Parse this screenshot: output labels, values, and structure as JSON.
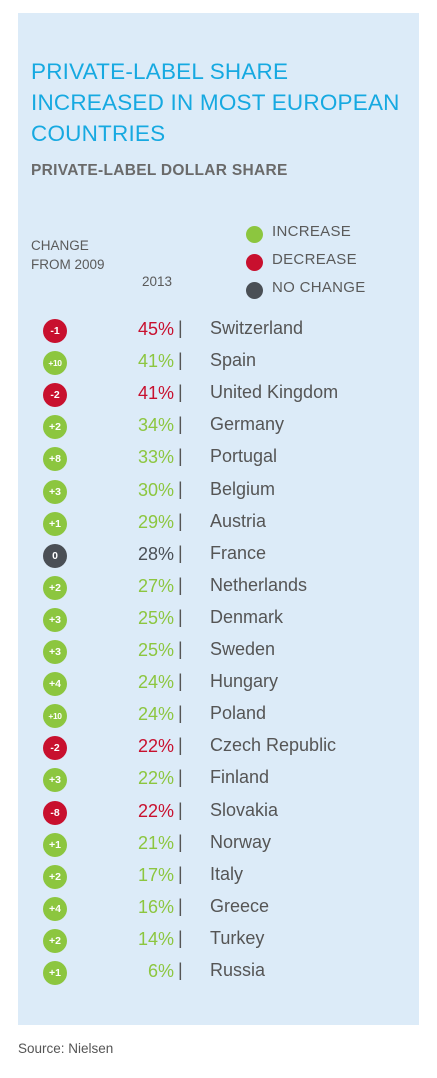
{
  "colors": {
    "increase": "#8cc63f",
    "decrease": "#c8102e",
    "no_change": "#4a4f55",
    "title": "#16a9e1",
    "panel": "#dcebf8"
  },
  "chart_data": {
    "type": "table",
    "title": "PRIVATE-LABEL SHARE INCREASED IN MOST EUROPEAN COUNTRIES",
    "subtitle": "PRIVATE-LABEL DOLLAR SHARE",
    "change_header": "CHANGE FROM 2009",
    "year_header": "2013",
    "legend": [
      {
        "label": "INCREASE",
        "status": "increase"
      },
      {
        "label": "DECREASE",
        "status": "decrease"
      },
      {
        "label": "NO CHANGE",
        "status": "no_change"
      }
    ],
    "rows": [
      {
        "change": "-1",
        "share": "45%",
        "country": "Switzerland",
        "status": "decrease"
      },
      {
        "change": "+10",
        "share": "41%",
        "country": "Spain",
        "status": "increase"
      },
      {
        "change": "-2",
        "share": "41%",
        "country": "United Kingdom",
        "status": "decrease"
      },
      {
        "change": "+2",
        "share": "34%",
        "country": "Germany",
        "status": "increase"
      },
      {
        "change": "+8",
        "share": "33%",
        "country": "Portugal",
        "status": "increase"
      },
      {
        "change": "+3",
        "share": "30%",
        "country": "Belgium",
        "status": "increase"
      },
      {
        "change": "+1",
        "share": "29%",
        "country": "Austria",
        "status": "increase"
      },
      {
        "change": "0",
        "share": "28%",
        "country": "France",
        "status": "no_change"
      },
      {
        "change": "+2",
        "share": "27%",
        "country": "Netherlands",
        "status": "increase"
      },
      {
        "change": "+3",
        "share": "25%",
        "country": "Denmark",
        "status": "increase"
      },
      {
        "change": "+3",
        "share": "25%",
        "country": "Sweden",
        "status": "increase"
      },
      {
        "change": "+4",
        "share": "24%",
        "country": "Hungary",
        "status": "increase"
      },
      {
        "change": "+10",
        "share": "24%",
        "country": "Poland",
        "status": "increase"
      },
      {
        "change": "-2",
        "share": "22%",
        "country": "Czech Republic",
        "status": "decrease"
      },
      {
        "change": "+3",
        "share": "22%",
        "country": "Finland",
        "status": "increase"
      },
      {
        "change": "-8",
        "share": "22%",
        "country": "Slovakia",
        "status": "decrease"
      },
      {
        "change": "+1",
        "share": "21%",
        "country": "Norway",
        "status": "increase"
      },
      {
        "change": "+2",
        "share": "17%",
        "country": "Italy",
        "status": "increase"
      },
      {
        "change": "+4",
        "share": "16%",
        "country": "Greece",
        "status": "increase"
      },
      {
        "change": "+2",
        "share": "14%",
        "country": "Turkey",
        "status": "increase"
      },
      {
        "change": "+1",
        "share": "6%",
        "country": "Russia",
        "status": "increase"
      }
    ],
    "separator": "|"
  },
  "source": "Source: Nielsen"
}
